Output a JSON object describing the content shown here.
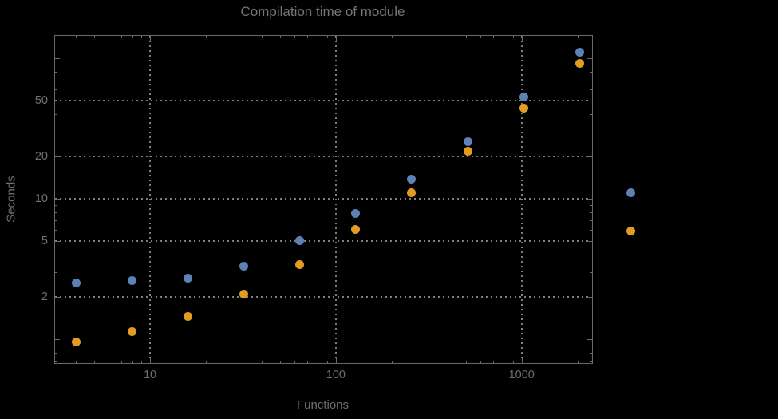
{
  "title": "Compilation time of module",
  "colors": {
    "background": "#000000",
    "text": "#6f6f6f",
    "frame": "#6a6a6a",
    "gridline": "#7f7f7f",
    "series1": "#5E81B5",
    "series2": "#E19C24"
  },
  "chart_data": {
    "type": "scatter",
    "title": "Compilation time of module",
    "xlabel": "Functions",
    "ylabel": "Seconds",
    "x_scale": "log",
    "y_scale": "log",
    "grid": "dotted",
    "x": [
      4,
      8,
      16,
      32,
      64,
      128,
      256,
      512,
      1024,
      2048
    ],
    "series": [
      {
        "color": "#5E81B5",
        "values": [
          2.5,
          2.6,
          2.7,
          3.3,
          5.0,
          7.8,
          13.7,
          25.6,
          53,
          111
        ]
      },
      {
        "color": "#E19C24",
        "values": [
          0.95,
          1.13,
          1.45,
          2.1,
          3.4,
          6.0,
          11.1,
          21.9,
          44.5,
          92
        ]
      }
    ],
    "x_axis": {
      "labeled_ticks": [
        10,
        100,
        1000
      ],
      "unlabeled_major_ticks": [],
      "minor_ticks": [
        4,
        5,
        6,
        7,
        8,
        9,
        20,
        30,
        40,
        50,
        60,
        70,
        80,
        90,
        200,
        300,
        400,
        500,
        600,
        700,
        800,
        900,
        2000
      ],
      "range": [
        3.05,
        2370
      ]
    },
    "y_axis": {
      "labeled_ticks": [
        2,
        5,
        10,
        20,
        50
      ],
      "unlabeled_major_ticks": [
        1,
        100
      ],
      "minor_ticks": [
        0.7,
        0.8,
        0.9,
        3,
        4,
        6,
        7,
        8,
        9,
        30,
        40,
        60,
        70,
        80,
        90
      ],
      "range": [
        0.68,
        147
      ]
    },
    "x_gridlines": [
      10,
      100,
      1000
    ],
    "y_gridlines": [
      2,
      5,
      10,
      20,
      50
    ],
    "legend_position": "right-outside"
  },
  "legend": {
    "markers": [
      {
        "color": "#5E81B5"
      },
      {
        "color": "#E19C24"
      }
    ]
  }
}
